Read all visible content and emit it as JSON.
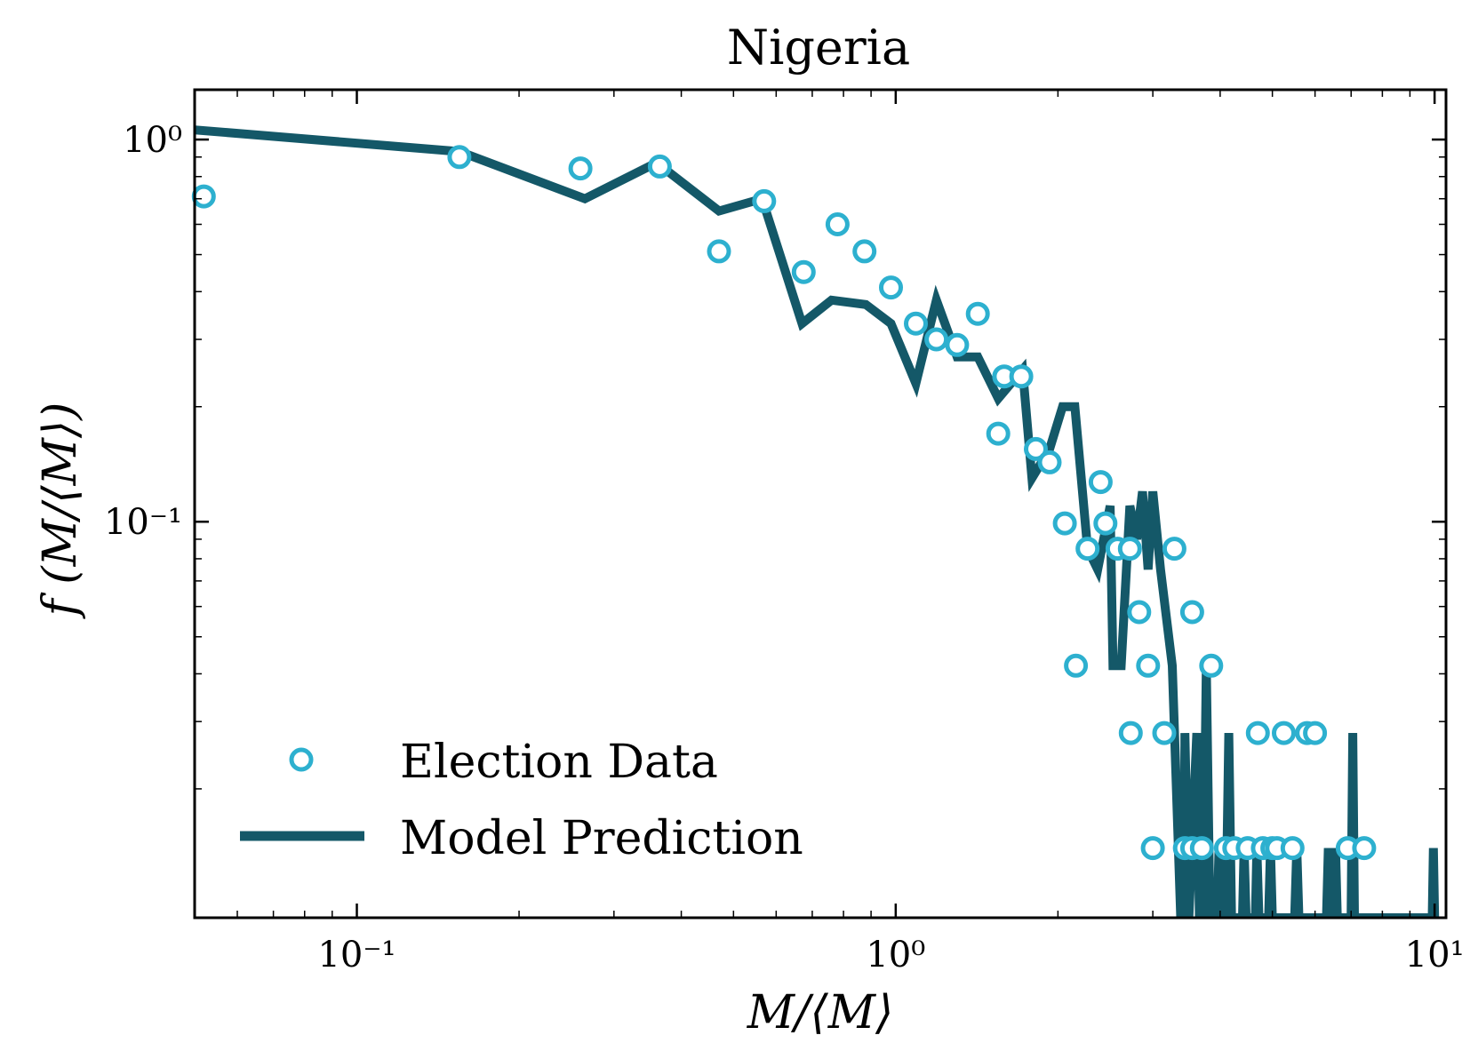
{
  "chart_data": {
    "type": "line",
    "title": "Nigeria",
    "xlabel": "M/⟨M⟩",
    "ylabel": "f (M/⟨M⟩)",
    "x_scale": "log",
    "y_scale": "log",
    "xlim": [
      0.05,
      10.5
    ],
    "ylim": [
      0.0092,
      1.35
    ],
    "x_ticks": [
      {
        "value": 0.1,
        "label": "10⁻¹"
      },
      {
        "value": 1,
        "label": "10⁰"
      },
      {
        "value": 10,
        "label": "10¹"
      }
    ],
    "y_ticks": [
      {
        "value": 0.1,
        "label": "10⁻¹"
      },
      {
        "value": 1,
        "label": "10⁰"
      }
    ],
    "grid": false,
    "legend": {
      "position": "lower-left",
      "entries": [
        "Election Data",
        "Model Prediction"
      ]
    },
    "colors": {
      "election_data": "#2db0cf",
      "model_prediction": "#145868",
      "axes": "#000000"
    },
    "series": [
      {
        "name": "Election Data",
        "style": "open-circle markers",
        "points": [
          [
            0.052,
            0.71
          ],
          [
            0.155,
            0.9
          ],
          [
            0.26,
            0.84
          ],
          [
            0.365,
            0.85
          ],
          [
            0.47,
            0.51
          ],
          [
            0.57,
            0.69
          ],
          [
            0.675,
            0.45
          ],
          [
            0.78,
            0.6
          ],
          [
            0.875,
            0.51
          ],
          [
            0.98,
            0.41
          ],
          [
            1.09,
            0.33
          ],
          [
            1.19,
            0.3
          ],
          [
            1.3,
            0.29
          ],
          [
            1.42,
            0.35
          ],
          [
            1.55,
            0.17
          ],
          [
            1.59,
            0.24
          ],
          [
            1.71,
            0.24
          ],
          [
            1.82,
            0.155
          ],
          [
            1.93,
            0.143
          ],
          [
            2.06,
            0.099
          ],
          [
            2.16,
            0.042
          ],
          [
            2.27,
            0.085
          ],
          [
            2.4,
            0.127
          ],
          [
            2.45,
            0.099
          ],
          [
            2.58,
            0.085
          ],
          [
            2.72,
            0.085
          ],
          [
            2.73,
            0.028
          ],
          [
            2.83,
            0.058
          ],
          [
            2.94,
            0.042
          ],
          [
            3.0,
            0.014
          ],
          [
            3.15,
            0.028
          ],
          [
            3.29,
            0.085
          ],
          [
            3.44,
            0.014
          ],
          [
            3.55,
            0.058
          ],
          [
            3.55,
            0.014
          ],
          [
            3.7,
            0.014
          ],
          [
            3.85,
            0.042
          ],
          [
            4.1,
            0.014
          ],
          [
            4.25,
            0.014
          ],
          [
            4.5,
            0.014
          ],
          [
            4.7,
            0.028
          ],
          [
            4.8,
            0.014
          ],
          [
            5.0,
            0.014
          ],
          [
            5.1,
            0.014
          ],
          [
            5.25,
            0.028
          ],
          [
            5.45,
            0.014
          ],
          [
            5.8,
            0.028
          ],
          [
            6.0,
            0.028
          ],
          [
            6.9,
            0.014
          ],
          [
            7.4,
            0.014
          ]
        ]
      },
      {
        "name": "Model Prediction",
        "style": "thick solid line",
        "points": [
          [
            0.05,
            1.06
          ],
          [
            0.155,
            0.93
          ],
          [
            0.265,
            0.7
          ],
          [
            0.36,
            0.87
          ],
          [
            0.47,
            0.65
          ],
          [
            0.565,
            0.7
          ],
          [
            0.67,
            0.33
          ],
          [
            0.76,
            0.38
          ],
          [
            0.88,
            0.37
          ],
          [
            0.98,
            0.33
          ],
          [
            1.09,
            0.23
          ],
          [
            1.19,
            0.38
          ],
          [
            1.3,
            0.27
          ],
          [
            1.42,
            0.27
          ],
          [
            1.55,
            0.21
          ],
          [
            1.72,
            0.25
          ],
          [
            1.79,
            0.13
          ],
          [
            1.93,
            0.155
          ],
          [
            2.04,
            0.2
          ],
          [
            2.15,
            0.2
          ],
          [
            2.27,
            0.085
          ],
          [
            2.37,
            0.075
          ],
          [
            2.5,
            0.11
          ],
          [
            2.53,
            0.042
          ],
          [
            2.62,
            0.042
          ],
          [
            2.72,
            0.11
          ],
          [
            2.8,
            0.09
          ],
          [
            2.87,
            0.12
          ],
          [
            2.94,
            0.075
          ],
          [
            3.0,
            0.12
          ],
          [
            3.1,
            0.075
          ],
          [
            3.26,
            0.042
          ],
          [
            3.38,
            0.0092
          ],
          [
            3.43,
            0.0092
          ],
          [
            3.44,
            0.028
          ],
          [
            3.5,
            0.0092
          ],
          [
            3.62,
            0.028
          ],
          [
            3.66,
            0.0092
          ],
          [
            3.72,
            0.0092
          ],
          [
            3.77,
            0.042
          ],
          [
            3.83,
            0.0092
          ],
          [
            3.95,
            0.0092
          ],
          [
            3.98,
            0.014
          ],
          [
            4.02,
            0.0092
          ],
          [
            4.1,
            0.0092
          ],
          [
            4.15,
            0.028
          ],
          [
            4.2,
            0.0092
          ],
          [
            4.4,
            0.0092
          ],
          [
            4.43,
            0.014
          ],
          [
            4.47,
            0.0092
          ],
          [
            4.65,
            0.0092
          ],
          [
            4.68,
            0.014
          ],
          [
            4.72,
            0.0092
          ],
          [
            4.92,
            0.0092
          ],
          [
            4.96,
            0.014
          ],
          [
            5.0,
            0.0092
          ],
          [
            5.5,
            0.0092
          ],
          [
            5.55,
            0.014
          ],
          [
            5.6,
            0.0092
          ],
          [
            6.3,
            0.0092
          ],
          [
            6.35,
            0.014
          ],
          [
            6.4,
            0.0092
          ],
          [
            6.5,
            0.0092
          ],
          [
            6.55,
            0.014
          ],
          [
            6.6,
            0.0092
          ],
          [
            7.0,
            0.0092
          ],
          [
            7.05,
            0.028
          ],
          [
            7.1,
            0.0092
          ],
          [
            9.9,
            0.0092
          ],
          [
            9.95,
            0.014
          ],
          [
            10.0,
            0.0092
          ]
        ]
      }
    ]
  }
}
